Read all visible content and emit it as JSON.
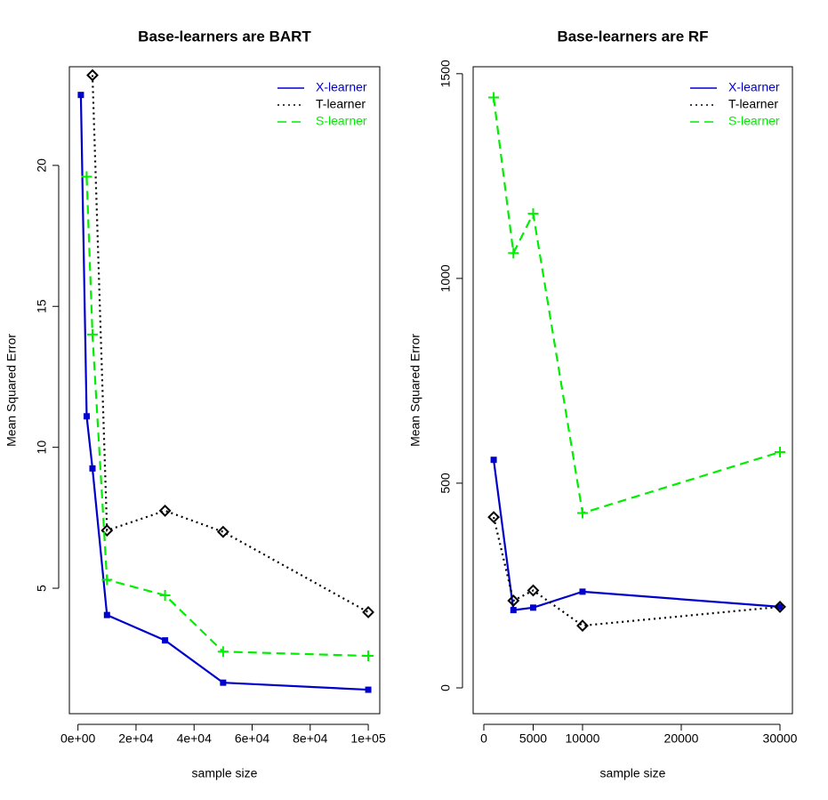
{
  "chart_data": [
    {
      "type": "line",
      "title": "Base-learners are BART",
      "x_label": "sample size",
      "y_label": "Mean Squared Error",
      "x": [
        1000,
        3000,
        5000,
        10000,
        30000,
        50000,
        100000
      ],
      "xlim": [
        -2960,
        103960
      ],
      "ylim": [
        0.55,
        23.5
      ],
      "xticks": [
        {
          "value": 0,
          "label": "0e+00"
        },
        {
          "value": 20000,
          "label": "2e+04"
        },
        {
          "value": 40000,
          "label": "4e+04"
        },
        {
          "value": 60000,
          "label": "6e+04"
        },
        {
          "value": 80000,
          "label": "8e+04"
        },
        {
          "value": 100000,
          "label": "1e+05"
        }
      ],
      "yticks": [
        5,
        10,
        15,
        20
      ],
      "legend": "top-right",
      "series": [
        {
          "name": "X-learner",
          "color": "#0000cc",
          "marker": "square",
          "dash": "solid",
          "values": [
            22.5,
            11.1,
            9.25,
            4.05,
            3.15,
            1.65,
            1.4
          ]
        },
        {
          "name": "T-learner",
          "color": "#000000",
          "marker": "diamond",
          "dash": "dotted",
          "values": [
            null,
            null,
            23.2,
            7.05,
            7.75,
            7.0,
            4.15
          ]
        },
        {
          "name": "S-learner",
          "color": "#00ee00",
          "marker": "plus",
          "dash": "dashed",
          "values": [
            null,
            19.6,
            14.0,
            5.3,
            4.75,
            2.75,
            2.6
          ]
        }
      ]
    },
    {
      "type": "line",
      "title": "Base-learners are RF",
      "x_label": "sample size",
      "y_label": "Mean Squared Error",
      "x": [
        1000,
        3000,
        5000,
        10000,
        30000
      ],
      "xlim": [
        -1080,
        31260
      ],
      "ylim": [
        -63,
        1517
      ],
      "xticks": [
        0,
        5000,
        10000,
        20000,
        30000
      ],
      "yticks": [
        0,
        500,
        1000,
        1500
      ],
      "legend": "top-right",
      "series": [
        {
          "name": "X-learner",
          "color": "#0000cc",
          "marker": "square",
          "dash": "solid",
          "values": [
            557,
            190,
            196,
            235,
            198
          ]
        },
        {
          "name": "T-learner",
          "color": "#000000",
          "marker": "diamond",
          "dash": "dotted",
          "values": [
            417,
            213,
            238,
            152,
            198
          ]
        },
        {
          "name": "S-learner",
          "color": "#00ee00",
          "marker": "plus",
          "dash": "dashed",
          "values": [
            1442,
            1062,
            1158,
            427,
            576
          ]
        }
      ]
    }
  ]
}
